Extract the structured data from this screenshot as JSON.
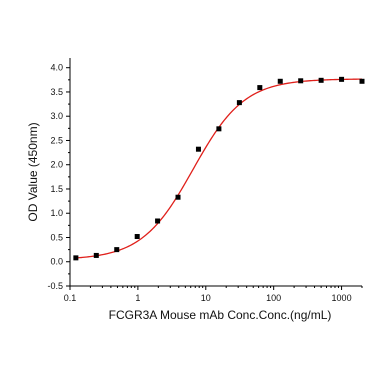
{
  "chart_data": {
    "type": "scatter",
    "title": "",
    "xlabel": "FCGR3A Mouse mAb Conc.Conc.(ng/mL)",
    "ylabel": "OD Value (450nm)",
    "x_scale": "log",
    "xlim": [
      0.1,
      2000
    ],
    "ylim": [
      -0.5,
      4.2
    ],
    "x_ticks": [
      0.1,
      1,
      10,
      100,
      1000
    ],
    "x_tick_labels": [
      "0.1",
      "1",
      "10",
      "100",
      "1000"
    ],
    "y_ticks": [
      -0.5,
      0.0,
      0.5,
      1.0,
      1.5,
      2.0,
      2.5,
      3.0,
      3.5,
      4.0
    ],
    "y_tick_labels": [
      "-0.5",
      "0.0",
      "0.5",
      "1.0",
      "1.5",
      "2.0",
      "2.5",
      "3.0",
      "3.5",
      "4.0"
    ],
    "grid": false,
    "series": [
      {
        "kind": "points",
        "marker": "square",
        "color": "#000000",
        "x": [
          0.122,
          0.244,
          0.488,
          0.977,
          1.95,
          3.9,
          7.8,
          15.6,
          31.25,
          62.5,
          125,
          250,
          500,
          1000,
          2000
        ],
        "y": [
          0.08,
          0.13,
          0.25,
          0.52,
          0.84,
          1.33,
          2.32,
          2.74,
          3.28,
          3.59,
          3.72,
          3.73,
          3.74,
          3.76,
          3.72
        ]
      },
      {
        "kind": "fit",
        "color": "#e0201b",
        "model": "4PL",
        "bottom": 0.04,
        "top": 3.77,
        "ec50": 6.5,
        "hill": 1.15
      }
    ]
  }
}
